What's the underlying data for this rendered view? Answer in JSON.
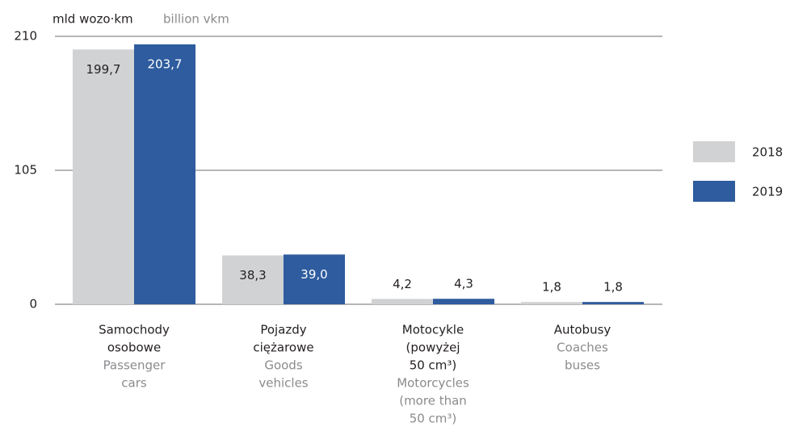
{
  "chart_data": {
    "type": "bar",
    "y_label": "mld wozo·km",
    "y_label_en": "billion vkm",
    "categories": [
      [
        "Samochody",
        "osobowe"
      ],
      [
        "Pojazdy",
        "ciężarowe"
      ],
      [
        "Motocykle",
        "(powyżej",
        "50 cm³)"
      ],
      [
        "Autobusy"
      ]
    ],
    "categories_en": [
      [
        "Passenger",
        "cars"
      ],
      [
        "Goods",
        "vehicles"
      ],
      [
        "Motorcycles",
        "(more than",
        "50 cm³)"
      ],
      [
        "Coaches",
        "buses"
      ]
    ],
    "series": [
      {
        "name": "2018",
        "color": "#d1d2d4",
        "values": [
          199.7,
          38.3,
          4.2,
          1.8
        ],
        "value_labels": [
          "199,7",
          "38,3",
          "4,2",
          "1,8"
        ]
      },
      {
        "name": "2019",
        "color": "#2e5c9e",
        "values": [
          203.7,
          39.0,
          4.3,
          1.8
        ],
        "value_labels": [
          "203,7",
          "39,0",
          "4,3",
          "1,8"
        ]
      }
    ],
    "ylim": [
      0,
      210
    ],
    "yticks": [
      0,
      105,
      210
    ],
    "grid": true,
    "legend": "right"
  }
}
